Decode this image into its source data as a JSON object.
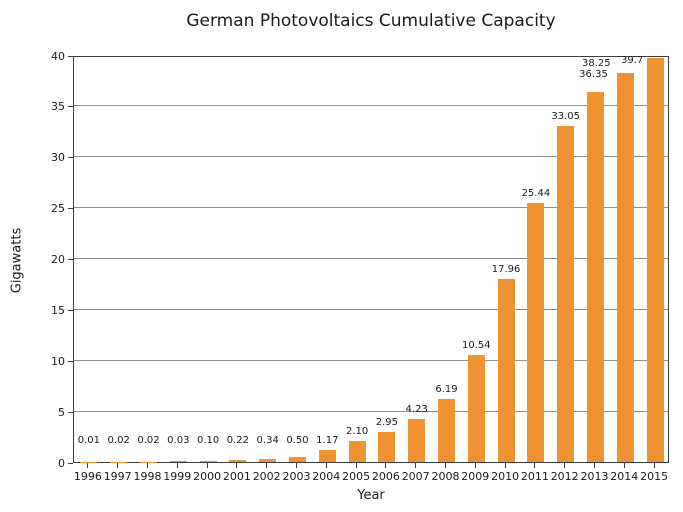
{
  "chart_data": {
    "type": "bar",
    "title": "German Photovoltaics Cumulative Capacity",
    "xlabel": "Year",
    "ylabel": "Gigawatts",
    "categories": [
      "1996",
      "1997",
      "1998",
      "1999",
      "2000",
      "2001",
      "2002",
      "2003",
      "2004",
      "2005",
      "2006",
      "2007",
      "2008",
      "2009",
      "2010",
      "2011",
      "2012",
      "2013",
      "2014",
      "2015"
    ],
    "values": [
      0.01,
      0.02,
      0.02,
      0.03,
      0.1,
      0.22,
      0.34,
      0.5,
      1.17,
      2.1,
      2.95,
      4.23,
      6.19,
      10.54,
      17.96,
      25.44,
      33.05,
      36.35,
      38.25,
      39.7
    ],
    "value_labels": [
      "0.01",
      "0.02",
      "0.02",
      "0.03",
      "0.10",
      "0.22",
      "0.34",
      "0.50",
      "1.17",
      "2.10",
      "2.95",
      "4.23",
      "6.19",
      "10.54",
      "17.96",
      "25.44",
      "33.05",
      "36.35",
      "38.25",
      "39.7"
    ],
    "ylim": [
      0,
      40
    ],
    "yticks": [
      0,
      5,
      10,
      15,
      20,
      25,
      30,
      35,
      40
    ],
    "grid": true,
    "legend": "none",
    "colors": {
      "bar": "#EF9231",
      "gridline": "#8F8F8F",
      "frame": "#3D3D3D",
      "text": "#1A1A1A",
      "background": "#FFFFFF"
    }
  }
}
